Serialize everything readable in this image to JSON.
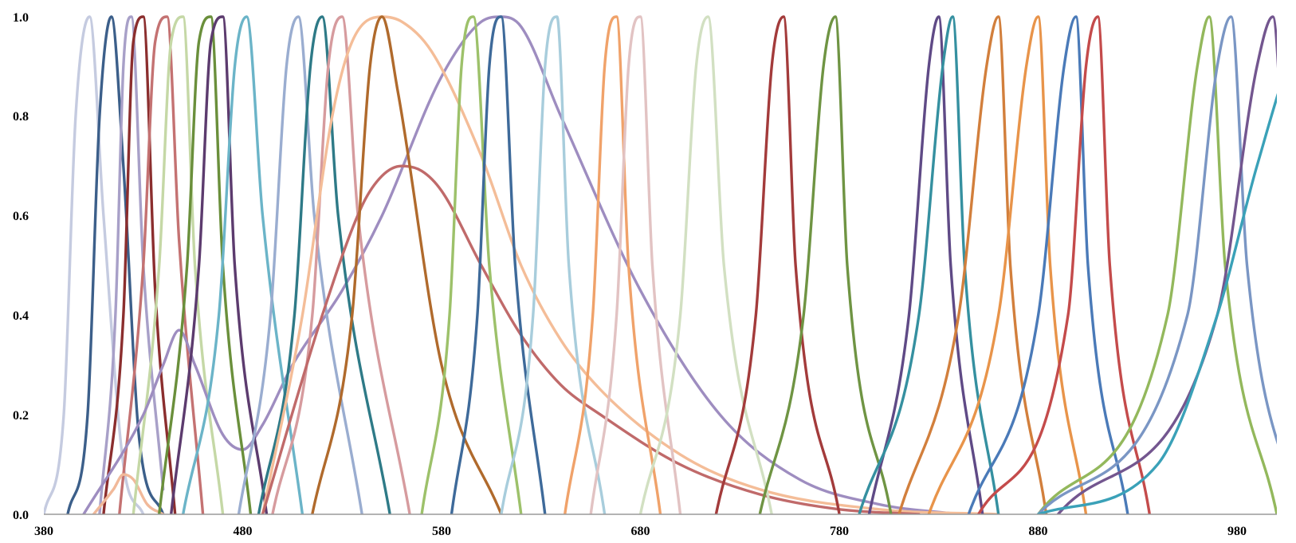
{
  "chart_data": {
    "type": "line",
    "title": "",
    "xlabel": "",
    "ylabel": "",
    "xlim": [
      380,
      1000
    ],
    "ylim": [
      0,
      1
    ],
    "x_ticks": [
      380,
      480,
      580,
      680,
      780,
      880,
      980
    ],
    "y_ticks": [
      0.0,
      0.2,
      0.4,
      0.6,
      0.8,
      1.0
    ],
    "x_tick_labels": [
      "380",
      "480",
      "580",
      "680",
      "780",
      "880",
      "980"
    ],
    "y_tick_labels": [
      "0.0",
      "0.2",
      "0.4",
      "0.6",
      "0.8",
      "1.0"
    ],
    "grid": false,
    "legend": "none",
    "series": [
      {
        "color": "#c5cbe0",
        "x": [
          380,
          390,
          396,
          403,
          410,
          420,
          430
        ],
        "y": [
          0.0,
          0.2,
          0.8,
          1.0,
          0.6,
          0.1,
          0.0
        ]
      },
      {
        "color": "#3c5f8a",
        "x": [
          392,
          402,
          408,
          414,
          420,
          428,
          440
        ],
        "y": [
          0.0,
          0.2,
          0.8,
          1.0,
          0.7,
          0.15,
          0.0
        ]
      },
      {
        "color": "#a8a0c8",
        "x": [
          408,
          416,
          420,
          424,
          430,
          440
        ],
        "y": [
          0.0,
          0.4,
          0.9,
          1.0,
          0.5,
          0.05
        ]
      },
      {
        "color": "#8b2e2e",
        "x": [
          410,
          420,
          425,
          430,
          436,
          446
        ],
        "y": [
          0.0,
          0.4,
          0.95,
          1.0,
          0.45,
          0.0
        ]
      },
      {
        "color": "#c47272",
        "x": [
          418,
          430,
          436,
          442,
          448,
          460
        ],
        "y": [
          0.0,
          0.5,
          0.95,
          1.0,
          0.55,
          0.0
        ]
      },
      {
        "color": "#f1b99a",
        "x": [
          405,
          415,
          420,
          425,
          432,
          440
        ],
        "y": [
          0.0,
          0.05,
          0.08,
          0.07,
          0.02,
          0.0
        ]
      },
      {
        "color": "#c5d8a6",
        "x": [
          425,
          438,
          444,
          450,
          456,
          470
        ],
        "y": [
          0.0,
          0.5,
          0.95,
          1.0,
          0.5,
          0.0
        ]
      },
      {
        "color": "#9e8dc0",
        "x": [
          400,
          430,
          440,
          448,
          456,
          470,
          480,
          490,
          505,
          530,
          550,
          580,
          600,
          610,
          620,
          640,
          680,
          720,
          760,
          800,
          840
        ],
        "y": [
          0.0,
          0.2,
          0.3,
          0.37,
          0.3,
          0.16,
          0.13,
          0.18,
          0.3,
          0.45,
          0.6,
          0.88,
          0.99,
          1.0,
          0.98,
          0.8,
          0.45,
          0.2,
          0.07,
          0.02,
          0.0
        ]
      },
      {
        "color": "#6a8f3b",
        "x": [
          438,
          452,
          458,
          464,
          470,
          484
        ],
        "y": [
          0.0,
          0.5,
          0.95,
          1.0,
          0.5,
          0.0
        ]
      },
      {
        "color": "#5c3b6e",
        "x": [
          444,
          458,
          464,
          470,
          476,
          492
        ],
        "y": [
          0.0,
          0.5,
          0.95,
          1.0,
          0.5,
          0.0
        ]
      },
      {
        "color": "#6bb4c8",
        "x": [
          450,
          468,
          476,
          482,
          490,
          510
        ],
        "y": [
          0.0,
          0.4,
          0.9,
          1.0,
          0.6,
          0.0
        ]
      },
      {
        "color": "#9aadd0",
        "x": [
          478,
          494,
          502,
          508,
          516,
          540
        ],
        "y": [
          0.0,
          0.4,
          0.9,
          1.0,
          0.6,
          0.0
        ]
      },
      {
        "color": "#2e7a87",
        "x": [
          488,
          506,
          514,
          520,
          528,
          554
        ],
        "y": [
          0.0,
          0.4,
          0.9,
          1.0,
          0.6,
          0.0
        ]
      },
      {
        "color": "#d69b9e",
        "x": [
          495,
          515,
          523,
          530,
          538,
          564
        ],
        "y": [
          0.0,
          0.4,
          0.9,
          1.0,
          0.6,
          0.0
        ]
      },
      {
        "color": "#f4bd98",
        "x": [
          490,
          510,
          525,
          535,
          550,
          560,
          575,
          600,
          620,
          640,
          660,
          700,
          740,
          800,
          860
        ],
        "y": [
          0.0,
          0.4,
          0.8,
          0.95,
          1.0,
          0.99,
          0.93,
          0.72,
          0.5,
          0.35,
          0.25,
          0.12,
          0.05,
          0.01,
          0.0
        ]
      },
      {
        "color": "#c06a6a",
        "x": [
          490,
          520,
          540,
          550,
          560,
          570,
          580,
          600,
          620,
          640,
          660,
          700,
          740,
          780,
          820
        ],
        "y": [
          0.0,
          0.4,
          0.62,
          0.68,
          0.7,
          0.69,
          0.65,
          0.5,
          0.36,
          0.26,
          0.2,
          0.1,
          0.04,
          0.01,
          0.0
        ]
      },
      {
        "color": "#b06a2c",
        "x": [
          515,
          535,
          544,
          550,
          558,
          580,
          610
        ],
        "y": [
          0.0,
          0.4,
          0.9,
          1.0,
          0.85,
          0.3,
          0.0
        ]
      },
      {
        "color": "#9dc16a",
        "x": [
          570,
          584,
          590,
          596,
          604,
          620
        ],
        "y": [
          0.0,
          0.4,
          0.9,
          1.0,
          0.5,
          0.0
        ]
      },
      {
        "color": "#3e6a9a",
        "x": [
          585,
          598,
          604,
          610,
          617,
          632
        ],
        "y": [
          0.0,
          0.4,
          0.9,
          1.0,
          0.5,
          0.0
        ]
      },
      {
        "color": "#a8cddc",
        "x": [
          610,
          626,
          632,
          638,
          644,
          662
        ],
        "y": [
          0.0,
          0.4,
          0.9,
          1.0,
          0.5,
          0.0
        ]
      },
      {
        "color": "#f0a26a",
        "x": [
          642,
          656,
          662,
          668,
          674,
          690
        ],
        "y": [
          0.0,
          0.4,
          0.9,
          1.0,
          0.5,
          0.0
        ]
      },
      {
        "color": "#e2c3c3",
        "x": [
          655,
          668,
          674,
          680,
          686,
          700
        ],
        "y": [
          0.0,
          0.4,
          0.9,
          1.0,
          0.5,
          0.0
        ]
      },
      {
        "color": "#d2e0c2",
        "x": [
          680,
          700,
          708,
          714,
          722,
          746
        ],
        "y": [
          0.0,
          0.4,
          0.9,
          1.0,
          0.5,
          0.0
        ]
      },
      {
        "color": "#a33b3b",
        "x": [
          718,
          738,
          746,
          752,
          758,
          780
        ],
        "y": [
          0.0,
          0.4,
          0.9,
          1.0,
          0.5,
          0.0
        ]
      },
      {
        "color": "#6f9443",
        "x": [
          740,
          762,
          772,
          778,
          784,
          806
        ],
        "y": [
          0.0,
          0.4,
          0.9,
          1.0,
          0.5,
          0.0
        ]
      },
      {
        "color": "#5f4a86",
        "x": [
          795,
          815,
          825,
          830,
          836,
          852
        ],
        "y": [
          0.0,
          0.4,
          0.9,
          1.0,
          0.5,
          0.0
        ]
      },
      {
        "color": "#3590a0",
        "x": [
          790,
          820,
          832,
          837,
          843,
          860
        ],
        "y": [
          0.0,
          0.4,
          0.9,
          1.0,
          0.5,
          0.0
        ]
      },
      {
        "color": "#d27f3c",
        "x": [
          810,
          840,
          854,
          860,
          866,
          884
        ],
        "y": [
          0.0,
          0.4,
          0.9,
          1.0,
          0.5,
          0.0
        ]
      },
      {
        "color": "#e8944a",
        "x": [
          825,
          860,
          874,
          880,
          886,
          904
        ],
        "y": [
          0.0,
          0.4,
          0.9,
          1.0,
          0.5,
          0.0
        ]
      },
      {
        "color": "#4a7ab8",
        "x": [
          845,
          880,
          893,
          899,
          905,
          925
        ],
        "y": [
          0.0,
          0.4,
          0.9,
          1.0,
          0.5,
          0.0
        ]
      },
      {
        "color": "#c44b4b",
        "x": [
          850,
          895,
          904,
          910,
          916,
          936
        ],
        "y": [
          0.0,
          0.4,
          0.9,
          1.0,
          0.5,
          0.0
        ]
      },
      {
        "color": "#93b85c",
        "x": [
          880,
          945,
          960,
          966,
          974,
          1000
        ],
        "y": [
          0.0,
          0.4,
          0.9,
          1.0,
          0.5,
          0.0
        ]
      },
      {
        "color": "#7a96c4",
        "x": [
          880,
          955,
          970,
          977,
          985,
          1010
        ],
        "y": [
          0.0,
          0.4,
          0.9,
          1.0,
          0.5,
          0.0
        ]
      },
      {
        "color": "#73568f",
        "x": [
          890,
          970,
          990,
          998,
          1006,
          1020
        ],
        "y": [
          0.0,
          0.4,
          0.9,
          1.0,
          0.5,
          0.1
        ]
      },
      {
        "color": "#3aa1b8",
        "x": [
          880,
          940,
          970,
          990,
          1010,
          1020
        ],
        "y": [
          0.0,
          0.1,
          0.4,
          0.7,
          0.95,
          1.0
        ]
      }
    ]
  }
}
